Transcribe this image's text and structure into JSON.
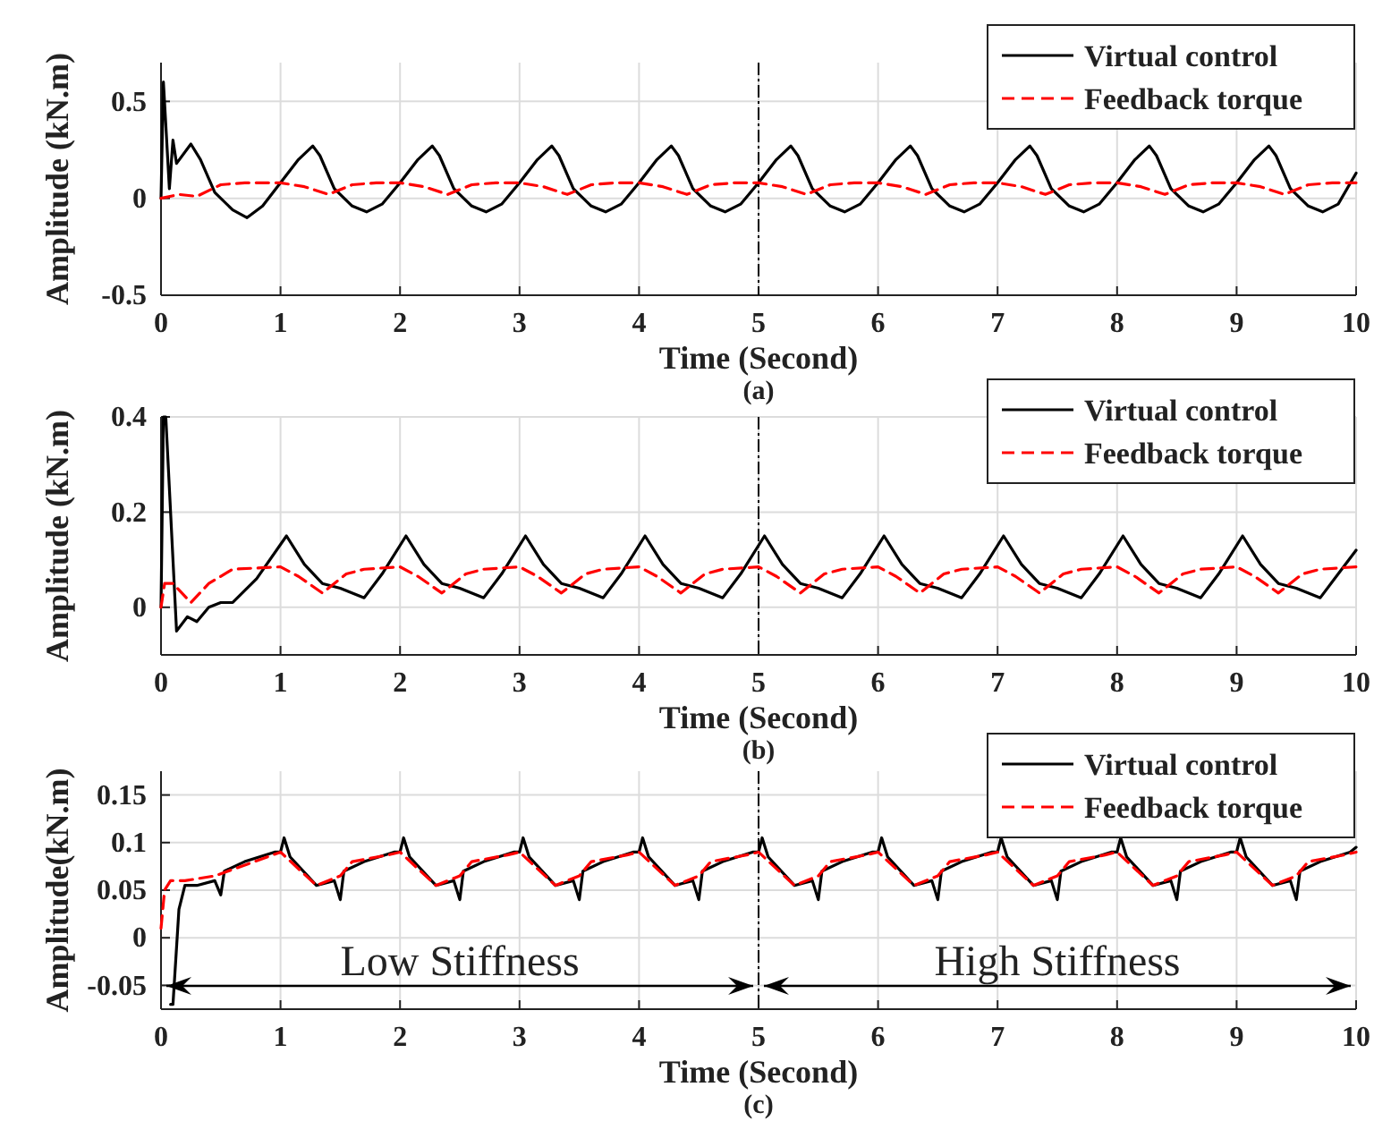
{
  "chart_data": [
    {
      "type": "line",
      "xlabel": "Time (Second)",
      "ylabel": "Amplitude (kN.m)",
      "annotations": [
        "(a)"
      ],
      "xlim": [
        0,
        10
      ],
      "xticks": [
        0,
        1,
        2,
        3,
        4,
        5,
        6,
        7,
        8,
        9,
        10
      ],
      "ylim": [
        -0.5,
        0.7
      ],
      "yticks": [
        -0.5,
        0,
        0.5
      ],
      "grid": true,
      "legend": "top right",
      "ref_lines": [
        {
          "axis": "x",
          "value": 5,
          "color": "#000000",
          "line_style": "dashed"
        }
      ],
      "series": [
        {
          "name": "Virtual control",
          "color": "#000000",
          "line_style": "solid",
          "x": [
            0,
            0.02,
            0.07,
            0.1,
            0.13,
            0.25,
            0.33,
            0.45,
            0.6,
            0.72,
            0.85,
            1,
            1.15,
            1.27,
            1.33,
            1.45,
            1.6,
            1.72,
            1.85,
            2,
            2.15,
            2.27,
            2.33,
            2.45,
            2.6,
            2.72,
            2.85,
            3,
            3.15,
            3.27,
            3.33,
            3.45,
            3.6,
            3.72,
            3.85,
            4,
            4.15,
            4.27,
            4.33,
            4.45,
            4.6,
            4.72,
            4.85,
            5,
            5.15,
            5.27,
            5.33,
            5.45,
            5.6,
            5.72,
            5.85,
            6,
            6.15,
            6.27,
            6.33,
            6.45,
            6.6,
            6.72,
            6.85,
            7,
            7.15,
            7.27,
            7.33,
            7.45,
            7.6,
            7.72,
            7.85,
            8,
            8.15,
            8.27,
            8.33,
            8.45,
            8.6,
            8.72,
            8.85,
            9,
            9.15,
            9.27,
            9.33,
            9.45,
            9.6,
            9.72,
            9.85,
            10
          ],
          "values": [
            0,
            0.6,
            0.05,
            0.3,
            0.18,
            0.28,
            0.2,
            0.03,
            -0.06,
            -0.1,
            -0.04,
            0.08,
            0.2,
            0.27,
            0.22,
            0.05,
            -0.04,
            -0.07,
            -0.03,
            0.08,
            0.2,
            0.27,
            0.22,
            0.05,
            -0.04,
            -0.07,
            -0.03,
            0.08,
            0.2,
            0.27,
            0.22,
            0.05,
            -0.04,
            -0.07,
            -0.03,
            0.08,
            0.2,
            0.27,
            0.22,
            0.05,
            -0.04,
            -0.07,
            -0.03,
            0.08,
            0.2,
            0.27,
            0.22,
            0.05,
            -0.04,
            -0.07,
            -0.03,
            0.08,
            0.2,
            0.27,
            0.22,
            0.05,
            -0.04,
            -0.07,
            -0.03,
            0.08,
            0.2,
            0.27,
            0.22,
            0.05,
            -0.04,
            -0.07,
            -0.03,
            0.08,
            0.2,
            0.27,
            0.22,
            0.05,
            -0.04,
            -0.07,
            -0.03,
            0.08,
            0.2,
            0.27,
            0.22,
            0.05,
            -0.04,
            -0.07,
            -0.03,
            0.13
          ]
        },
        {
          "name": "Feedback torque",
          "color": "#ff0000",
          "line_style": "dashed",
          "x": [
            0,
            0.15,
            0.3,
            0.5,
            0.7,
            1,
            1.2,
            1.4,
            1.6,
            1.8,
            2,
            2.2,
            2.4,
            2.6,
            2.8,
            3,
            3.2,
            3.4,
            3.6,
            3.8,
            4,
            4.2,
            4.4,
            4.6,
            4.8,
            5,
            5.2,
            5.4,
            5.6,
            5.8,
            6,
            6.2,
            6.4,
            6.6,
            6.8,
            7,
            7.2,
            7.4,
            7.6,
            7.8,
            8,
            8.2,
            8.4,
            8.6,
            8.8,
            9,
            9.2,
            9.4,
            9.6,
            9.8,
            10
          ],
          "values": [
            0,
            0.02,
            0.01,
            0.07,
            0.08,
            0.08,
            0.06,
            0.02,
            0.07,
            0.08,
            0.08,
            0.06,
            0.02,
            0.07,
            0.08,
            0.08,
            0.06,
            0.02,
            0.07,
            0.08,
            0.08,
            0.06,
            0.02,
            0.07,
            0.08,
            0.08,
            0.06,
            0.02,
            0.07,
            0.08,
            0.08,
            0.06,
            0.02,
            0.07,
            0.08,
            0.08,
            0.06,
            0.02,
            0.07,
            0.08,
            0.08,
            0.06,
            0.02,
            0.07,
            0.08,
            0.08,
            0.06,
            0.02,
            0.07,
            0.08,
            0.08
          ]
        }
      ]
    },
    {
      "type": "line",
      "xlabel": "Time (Second)",
      "ylabel": "Amplitude (kN.m)",
      "annotations": [
        "(b)"
      ],
      "xlim": [
        0,
        10
      ],
      "xticks": [
        0,
        1,
        2,
        3,
        4,
        5,
        6,
        7,
        8,
        9,
        10
      ],
      "ylim": [
        -0.1,
        0.4
      ],
      "yticks": [
        0,
        0.2,
        0.4
      ],
      "grid": true,
      "legend": "top right",
      "ref_lines": [
        {
          "axis": "x",
          "value": 5,
          "color": "#000000",
          "line_style": "dashed"
        }
      ],
      "series": [
        {
          "name": "Virtual control",
          "color": "#000000",
          "line_style": "solid",
          "x": [
            0,
            0.02,
            0.04,
            0.13,
            0.22,
            0.3,
            0.4,
            0.5,
            0.6,
            0.8,
            1.05,
            1.2,
            1.35,
            1.5,
            1.7,
            1.85,
            2.05,
            2.2,
            2.35,
            2.5,
            2.7,
            2.85,
            3.05,
            3.2,
            3.35,
            3.5,
            3.7,
            3.85,
            4.05,
            4.2,
            4.35,
            4.5,
            4.7,
            4.85,
            5.05,
            5.2,
            5.35,
            5.5,
            5.7,
            5.85,
            6.05,
            6.2,
            6.35,
            6.5,
            6.7,
            6.85,
            7.05,
            7.2,
            7.35,
            7.5,
            7.7,
            7.85,
            8.05,
            8.2,
            8.35,
            8.5,
            8.7,
            8.85,
            9.05,
            9.2,
            9.35,
            9.5,
            9.7,
            9.85,
            10
          ],
          "values": [
            0,
            0.4,
            0.4,
            -0.05,
            -0.02,
            -0.03,
            0,
            0.01,
            0.01,
            0.06,
            0.15,
            0.09,
            0.05,
            0.04,
            0.02,
            0.07,
            0.15,
            0.09,
            0.05,
            0.04,
            0.02,
            0.07,
            0.15,
            0.09,
            0.05,
            0.04,
            0.02,
            0.07,
            0.15,
            0.09,
            0.05,
            0.04,
            0.02,
            0.07,
            0.15,
            0.09,
            0.05,
            0.04,
            0.02,
            0.07,
            0.15,
            0.09,
            0.05,
            0.04,
            0.02,
            0.07,
            0.15,
            0.09,
            0.05,
            0.04,
            0.02,
            0.07,
            0.15,
            0.09,
            0.05,
            0.04,
            0.02,
            0.07,
            0.15,
            0.09,
            0.05,
            0.04,
            0.02,
            0.07,
            0.12
          ]
        },
        {
          "name": "Feedback torque",
          "color": "#ff0000",
          "line_style": "dashed",
          "x": [
            0,
            0.03,
            0.1,
            0.25,
            0.4,
            0.6,
            1,
            1.15,
            1.35,
            1.55,
            1.7,
            2,
            2.15,
            2.35,
            2.55,
            2.7,
            3,
            3.15,
            3.35,
            3.55,
            3.7,
            4,
            4.15,
            4.35,
            4.55,
            4.7,
            5,
            5.15,
            5.35,
            5.55,
            5.7,
            6,
            6.15,
            6.35,
            6.55,
            6.7,
            7,
            7.15,
            7.35,
            7.55,
            7.7,
            8,
            8.15,
            8.35,
            8.55,
            8.7,
            9,
            9.15,
            9.35,
            9.55,
            9.7,
            10
          ],
          "values": [
            0,
            0.05,
            0.05,
            0.01,
            0.05,
            0.08,
            0.085,
            0.065,
            0.03,
            0.07,
            0.08,
            0.085,
            0.065,
            0.03,
            0.07,
            0.08,
            0.085,
            0.065,
            0.03,
            0.07,
            0.08,
            0.085,
            0.065,
            0.03,
            0.07,
            0.08,
            0.085,
            0.065,
            0.03,
            0.07,
            0.08,
            0.085,
            0.065,
            0.03,
            0.07,
            0.08,
            0.085,
            0.065,
            0.03,
            0.07,
            0.08,
            0.085,
            0.065,
            0.03,
            0.07,
            0.08,
            0.085,
            0.065,
            0.03,
            0.07,
            0.08,
            0.085
          ]
        }
      ]
    },
    {
      "type": "line",
      "xlabel": "Time (Second)",
      "ylabel": "Amplitude(kN.m)",
      "annotations": [
        "Low Stiffness",
        "High Stiffness",
        "(c)"
      ],
      "xlim": [
        0,
        10
      ],
      "xticks": [
        0,
        1,
        2,
        3,
        4,
        5,
        6,
        7,
        8,
        9,
        10
      ],
      "ylim": [
        -0.075,
        0.175
      ],
      "yticks": [
        -0.05,
        0,
        0.05,
        0.1,
        0.15
      ],
      "grid": true,
      "legend": "top right",
      "ref_lines": [
        {
          "axis": "x",
          "value": 5,
          "color": "#000000",
          "line_style": "dashed"
        }
      ],
      "series": [
        {
          "name": "Virtual control",
          "color": "#000000",
          "line_style": "solid",
          "x": [
            0.08,
            0.1,
            0.15,
            0.2,
            0.3,
            0.45,
            0.5,
            0.53,
            0.7,
            0.95,
            1,
            1.03,
            1.08,
            1.3,
            1.45,
            1.5,
            1.53,
            1.7,
            1.95,
            2,
            2.03,
            2.08,
            2.3,
            2.45,
            2.5,
            2.53,
            2.7,
            2.95,
            3,
            3.03,
            3.08,
            3.3,
            3.45,
            3.5,
            3.53,
            3.7,
            3.95,
            4,
            4.03,
            4.08,
            4.3,
            4.45,
            4.5,
            4.53,
            4.7,
            4.95,
            5,
            5.03,
            5.08,
            5.3,
            5.45,
            5.5,
            5.53,
            5.7,
            5.95,
            6,
            6.03,
            6.08,
            6.3,
            6.45,
            6.5,
            6.53,
            6.7,
            6.95,
            7,
            7.03,
            7.08,
            7.3,
            7.45,
            7.5,
            7.53,
            7.7,
            7.95,
            8,
            8.03,
            8.08,
            8.3,
            8.45,
            8.5,
            8.53,
            8.7,
            8.95,
            9,
            9.03,
            9.08,
            9.3,
            9.45,
            9.5,
            9.53,
            9.7,
            9.95,
            10
          ],
          "values": [
            -0.07,
            -0.07,
            0.03,
            0.055,
            0.055,
            0.06,
            0.045,
            0.07,
            0.08,
            0.09,
            0.09,
            0.105,
            0.085,
            0.055,
            0.06,
            0.04,
            0.07,
            0.08,
            0.09,
            0.09,
            0.105,
            0.085,
            0.055,
            0.06,
            0.04,
            0.07,
            0.08,
            0.09,
            0.09,
            0.105,
            0.085,
            0.055,
            0.06,
            0.04,
            0.07,
            0.08,
            0.09,
            0.09,
            0.105,
            0.085,
            0.055,
            0.06,
            0.04,
            0.07,
            0.08,
            0.09,
            0.09,
            0.105,
            0.085,
            0.055,
            0.06,
            0.04,
            0.07,
            0.08,
            0.09,
            0.09,
            0.105,
            0.085,
            0.055,
            0.06,
            0.04,
            0.07,
            0.08,
            0.09,
            0.09,
            0.105,
            0.085,
            0.055,
            0.06,
            0.04,
            0.07,
            0.08,
            0.09,
            0.09,
            0.105,
            0.085,
            0.055,
            0.06,
            0.04,
            0.07,
            0.08,
            0.09,
            0.09,
            0.105,
            0.085,
            0.055,
            0.06,
            0.04,
            0.07,
            0.08,
            0.09,
            0.095
          ]
        },
        {
          "name": "Feedback torque",
          "color": "#ff0000",
          "line_style": "dashed",
          "x": [
            0,
            0.03,
            0.08,
            0.2,
            0.45,
            1,
            1.3,
            1.5,
            1.6,
            1.9,
            2,
            2.3,
            2.5,
            2.6,
            2.9,
            3,
            3.3,
            3.5,
            3.6,
            3.9,
            4,
            4.3,
            4.5,
            4.6,
            4.9,
            5,
            5.3,
            5.5,
            5.6,
            5.9,
            6,
            6.3,
            6.5,
            6.6,
            6.9,
            7,
            7.3,
            7.5,
            7.6,
            7.9,
            8,
            8.3,
            8.5,
            8.6,
            8.9,
            9,
            9.3,
            9.5,
            9.6,
            9.9,
            10
          ],
          "values": [
            0.01,
            0.05,
            0.06,
            0.06,
            0.065,
            0.09,
            0.055,
            0.065,
            0.08,
            0.087,
            0.09,
            0.055,
            0.065,
            0.08,
            0.087,
            0.09,
            0.055,
            0.065,
            0.08,
            0.087,
            0.09,
            0.055,
            0.065,
            0.08,
            0.087,
            0.09,
            0.055,
            0.065,
            0.08,
            0.087,
            0.09,
            0.055,
            0.065,
            0.08,
            0.087,
            0.09,
            0.055,
            0.065,
            0.08,
            0.087,
            0.09,
            0.055,
            0.065,
            0.08,
            0.087,
            0.09,
            0.055,
            0.065,
            0.08,
            0.087,
            0.09
          ]
        }
      ]
    }
  ]
}
